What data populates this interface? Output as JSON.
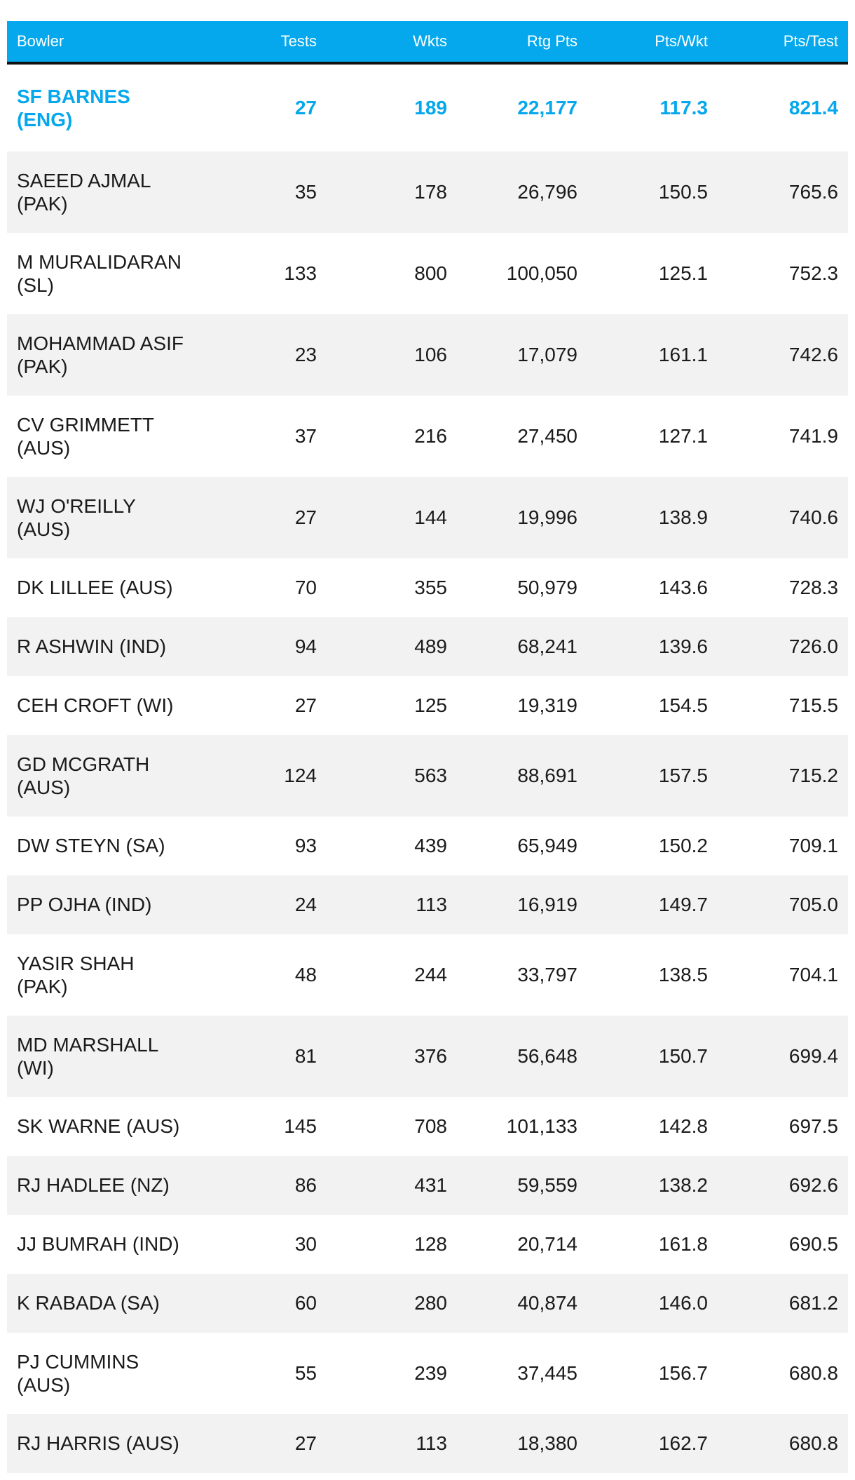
{
  "columns": [
    "Bowler",
    "Tests",
    "Wkts",
    "Rtg Pts",
    "Pts/Wkt",
    "Pts/Test"
  ],
  "accent_color": "#05a8ec",
  "highlight_row": 0,
  "rows": [
    {
      "bowler": "SF BARNES (ENG)",
      "tests": "27",
      "wkts": "189",
      "rtg_pts": "22,177",
      "pts_wkt": "117.3",
      "pts_test": "821.4"
    },
    {
      "bowler": "SAEED AJMAL (PAK)",
      "tests": "35",
      "wkts": "178",
      "rtg_pts": "26,796",
      "pts_wkt": "150.5",
      "pts_test": "765.6"
    },
    {
      "bowler": "M MURALIDARAN (SL)",
      "tests": "133",
      "wkts": "800",
      "rtg_pts": "100,050",
      "pts_wkt": "125.1",
      "pts_test": "752.3"
    },
    {
      "bowler": "MOHAMMAD ASIF (PAK)",
      "tests": "23",
      "wkts": "106",
      "rtg_pts": "17,079",
      "pts_wkt": "161.1",
      "pts_test": "742.6"
    },
    {
      "bowler": "CV GRIMMETT (AUS)",
      "tests": "37",
      "wkts": "216",
      "rtg_pts": "27,450",
      "pts_wkt": "127.1",
      "pts_test": "741.9"
    },
    {
      "bowler": "WJ O'REILLY (AUS)",
      "tests": "27",
      "wkts": "144",
      "rtg_pts": "19,996",
      "pts_wkt": "138.9",
      "pts_test": "740.6"
    },
    {
      "bowler": "DK LILLEE (AUS)",
      "tests": "70",
      "wkts": "355",
      "rtg_pts": "50,979",
      "pts_wkt": "143.6",
      "pts_test": "728.3"
    },
    {
      "bowler": "R ASHWIN (IND)",
      "tests": "94",
      "wkts": "489",
      "rtg_pts": "68,241",
      "pts_wkt": "139.6",
      "pts_test": "726.0"
    },
    {
      "bowler": "CEH CROFT (WI)",
      "tests": "27",
      "wkts": "125",
      "rtg_pts": "19,319",
      "pts_wkt": "154.5",
      "pts_test": "715.5"
    },
    {
      "bowler": "GD MCGRATH (AUS)",
      "tests": "124",
      "wkts": "563",
      "rtg_pts": "88,691",
      "pts_wkt": "157.5",
      "pts_test": "715.2"
    },
    {
      "bowler": "DW STEYN (SA)",
      "tests": "93",
      "wkts": "439",
      "rtg_pts": "65,949",
      "pts_wkt": "150.2",
      "pts_test": "709.1"
    },
    {
      "bowler": "PP OJHA (IND)",
      "tests": "24",
      "wkts": "113",
      "rtg_pts": "16,919",
      "pts_wkt": "149.7",
      "pts_test": "705.0"
    },
    {
      "bowler": "YASIR SHAH (PAK)",
      "tests": "48",
      "wkts": "244",
      "rtg_pts": "33,797",
      "pts_wkt": "138.5",
      "pts_test": "704.1"
    },
    {
      "bowler": "MD MARSHALL (WI)",
      "tests": "81",
      "wkts": "376",
      "rtg_pts": "56,648",
      "pts_wkt": "150.7",
      "pts_test": "699.4"
    },
    {
      "bowler": "SK WARNE (AUS)",
      "tests": "145",
      "wkts": "708",
      "rtg_pts": "101,133",
      "pts_wkt": "142.8",
      "pts_test": "697.5"
    },
    {
      "bowler": "RJ HADLEE (NZ)",
      "tests": "86",
      "wkts": "431",
      "rtg_pts": "59,559",
      "pts_wkt": "138.2",
      "pts_test": "692.6"
    },
    {
      "bowler": "JJ BUMRAH (IND)",
      "tests": "30",
      "wkts": "128",
      "rtg_pts": "20,714",
      "pts_wkt": "161.8",
      "pts_test": "690.5"
    },
    {
      "bowler": "K RABADA (SA)",
      "tests": "60",
      "wkts": "280",
      "rtg_pts": "40,874",
      "pts_wkt": "146.0",
      "pts_test": "681.2"
    },
    {
      "bowler": "PJ CUMMINS (AUS)",
      "tests": "55",
      "wkts": "239",
      "rtg_pts": "37,445",
      "pts_wkt": "156.7",
      "pts_test": "680.8"
    },
    {
      "bowler": "RJ HARRIS (AUS)",
      "tests": "27",
      "wkts": "113",
      "rtg_pts": "18,380",
      "pts_wkt": "162.7",
      "pts_test": "680.8"
    }
  ]
}
